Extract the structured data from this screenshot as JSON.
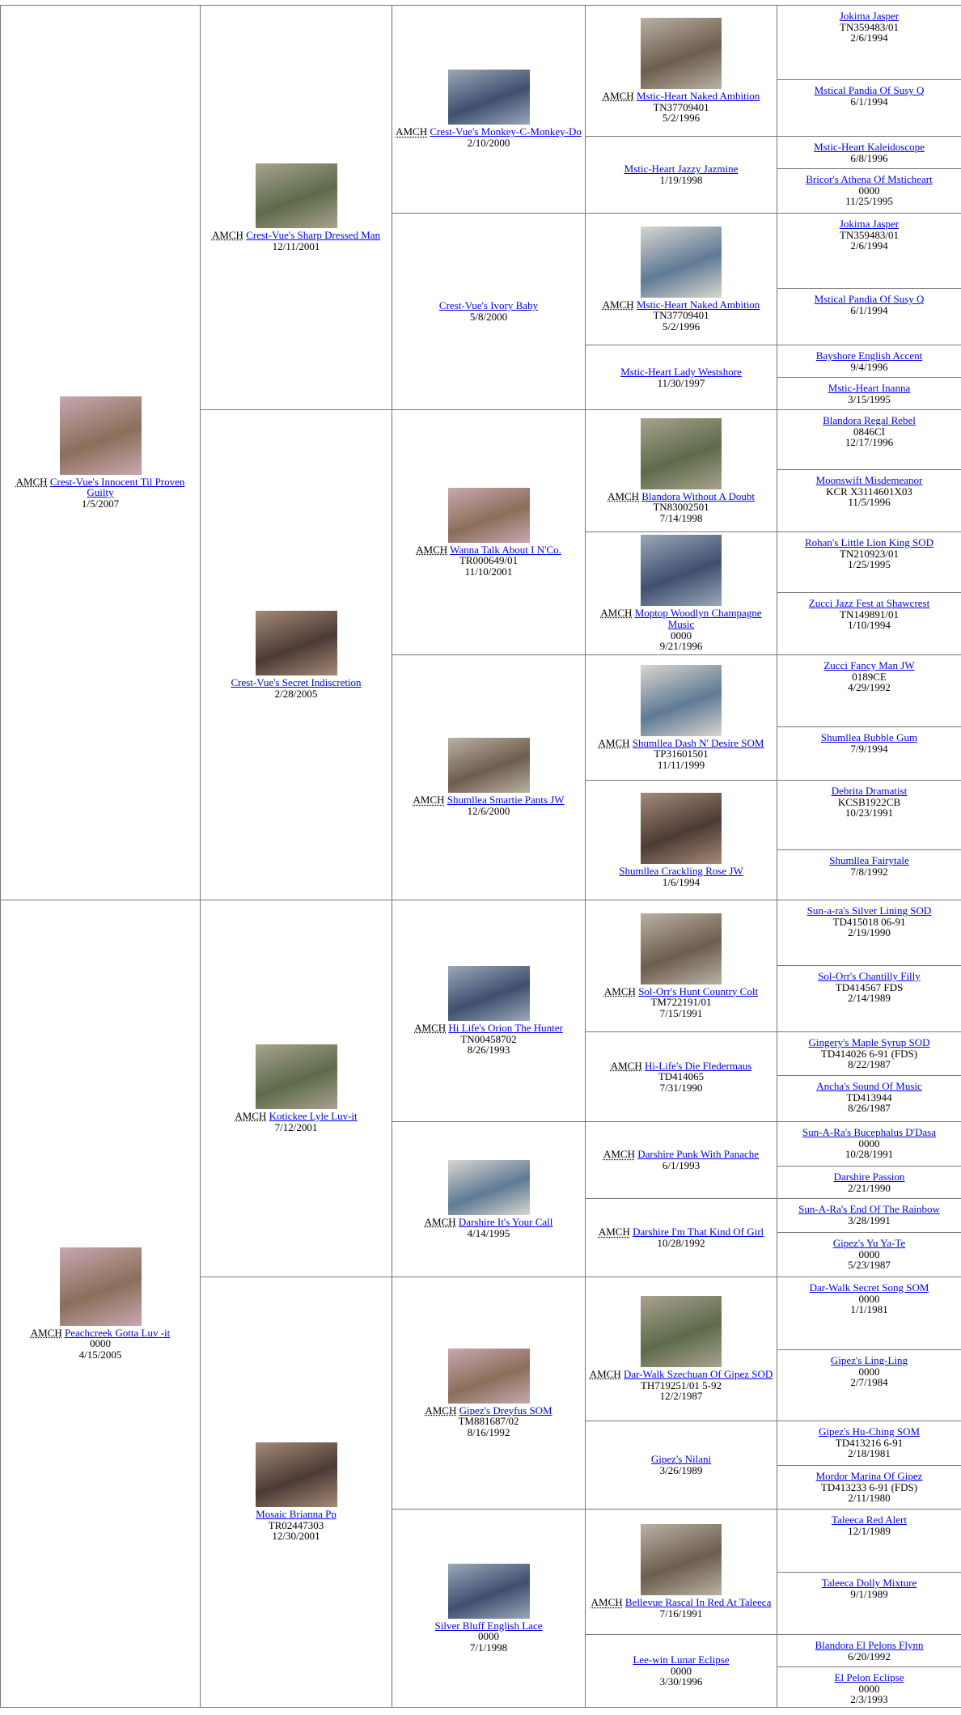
{
  "pedigree": {
    "generations": [
      [
        {
          "title": "AMCH",
          "name": "Crest-Vue's Innocent Til Proven Guilty",
          "details": [
            "1/5/2007"
          ],
          "photo": true
        },
        {
          "title": "AMCH",
          "name": "Peachcreek Gotta Luv -it",
          "details": [
            "0000",
            "4/15/2005"
          ],
          "photo": true
        }
      ],
      [
        {
          "title": "AMCH",
          "name": "Crest-Vue's Sharp Dressed Man",
          "details": [
            "12/11/2001"
          ],
          "photo": true
        },
        {
          "name": "Crest-Vue's Secret Indiscretion",
          "details": [
            "2/28/2005"
          ],
          "photo": true
        },
        {
          "title": "AMCH",
          "name": "Kotickee Lyle Luv-it",
          "details": [
            "7/12/2001"
          ],
          "photo": true
        },
        {
          "name": "Mosaic Brianna Pp",
          "details": [
            "TR02447303",
            "12/30/2001"
          ],
          "photo": true
        }
      ],
      [
        {
          "title": "AMCH",
          "name": "Crest-Vue's Monkey-C-Monkey-Do",
          "details": [
            "2/10/2000"
          ],
          "photo": true
        },
        {
          "name": "Crest-Vue's Ivory Baby",
          "details": [
            "5/8/2000"
          ]
        },
        {
          "title": "AMCH",
          "name": "Wanna Talk About I N'Co.",
          "details": [
            "TR000649/01",
            "11/10/2001"
          ],
          "photo": true
        },
        {
          "title": "AMCH",
          "name": "Shumllea Smartie Pants JW",
          "details": [
            "12/6/2000"
          ],
          "photo": true
        },
        {
          "title": "AMCH",
          "name": "Hi Life's Orion The Hunter",
          "details": [
            "TN00458702",
            "8/26/1993"
          ],
          "photo": true
        },
        {
          "title": "AMCH",
          "name": "Darshire It's Your Call",
          "details": [
            "4/14/1995"
          ],
          "photo": true
        },
        {
          "title": "AMCH",
          "name": "Gipez's Dreyfus SOM",
          "details": [
            "TM881687/02",
            "8/16/1992"
          ],
          "photo": true
        },
        {
          "name": "Silver Bluff English Lace",
          "details": [
            "0000",
            "7/1/1998"
          ],
          "photo": true
        }
      ],
      [
        {
          "title": "AMCH",
          "name": "Mstic-Heart Naked Ambition",
          "details": [
            "TN37709401",
            "5/2/1996"
          ],
          "photo": true
        },
        {
          "name": "Mstic-Heart Jazzy Jazmine",
          "details": [
            "1/19/1998"
          ]
        },
        {
          "title": "AMCH",
          "name": "Mstic-Heart Naked Ambition",
          "details": [
            "TN37709401",
            "5/2/1996"
          ],
          "photo": true
        },
        {
          "name": "Mstic-Heart Lady Westshore",
          "details": [
            "11/30/1997"
          ]
        },
        {
          "title": "AMCH",
          "name": "Blandora Without A Doubt",
          "details": [
            "TN83002501",
            "7/14/1998"
          ],
          "photo": true
        },
        {
          "title": "AMCH",
          "name": "Moptop Woodlyn Champagne Music",
          "details": [
            "0000",
            "9/21/1996"
          ],
          "photo": true
        },
        {
          "title": "AMCH",
          "name": "Shumllea Dash N' Desire SOM",
          "details": [
            "TP31601501",
            "11/11/1999"
          ],
          "photo": true
        },
        {
          "name": "Shumllea Crackling Rose JW",
          "details": [
            "1/6/1994"
          ],
          "photo": true
        },
        {
          "title": "AMCH",
          "name": "Sol-Orr's Hunt Country Colt",
          "details": [
            "TM722191/01",
            "7/15/1991"
          ],
          "photo": true
        },
        {
          "title": "AMCH",
          "name": "Hi-Life's Die Fledermaus",
          "details": [
            "TD414065",
            "7/31/1990"
          ]
        },
        {
          "title": "AMCH",
          "name": "Darshire Punk With Panache",
          "details": [
            "6/1/1993"
          ]
        },
        {
          "title": "AMCH",
          "name": "Darshire I'm That Kind Of Girl",
          "details": [
            "10/28/1992"
          ]
        },
        {
          "title": "AMCH",
          "name": "Dar-Walk Szechuan Of Gipez SOD",
          "details": [
            "TH719251/01 5-92",
            "12/2/1987"
          ],
          "photo": true
        },
        {
          "name": "Gipez's Nilani",
          "details": [
            "3/26/1989"
          ]
        },
        {
          "title": "AMCH",
          "name": "Bellevue Rascal In Red At Taleeca",
          "details": [
            "7/16/1991"
          ],
          "photo": true
        },
        {
          "name": "Lee-win Lunar Eclipse",
          "details": [
            "0000",
            "3/30/1996"
          ]
        }
      ],
      [
        {
          "name": "Jokima Jasper",
          "details": [
            "TN359483/01",
            "2/6/1994"
          ]
        },
        {
          "name": "Mstical Pandia Of Susy Q",
          "details": [
            "6/1/1994"
          ]
        },
        {
          "name": "Mstic-Heart Kaleidoscope",
          "details": [
            "6/8/1996"
          ]
        },
        {
          "name": "Bricor's Athena Of Msticheart",
          "details": [
            "0000",
            "11/25/1995"
          ]
        },
        {
          "name": "Jokima Jasper",
          "details": [
            "TN359483/01",
            "2/6/1994"
          ]
        },
        {
          "name": "Mstical Pandia Of Susy Q",
          "details": [
            "6/1/1994"
          ]
        },
        {
          "name": "Bayshore English Accent",
          "details": [
            "9/4/1996"
          ]
        },
        {
          "name": "Mstic-Heart Inanna",
          "details": [
            "3/15/1995"
          ]
        },
        {
          "name": "Blandora Regal Rebel",
          "details": [
            "0846CI",
            "12/17/1996"
          ]
        },
        {
          "name": "Moonswift Misdemeanor",
          "details": [
            "KCR X3114601X03",
            "11/5/1996"
          ]
        },
        {
          "name": "Rohan's Little Lion King SOD",
          "details": [
            "TN210923/01",
            "1/25/1995"
          ]
        },
        {
          "name": "Zucci Jazz Fest at Shawcrest",
          "details": [
            "TN149891/01",
            "1/10/1994"
          ]
        },
        {
          "name": "Zucci Fancy Man JW",
          "details": [
            "0189CE",
            "4/29/1992"
          ]
        },
        {
          "name": "Shumllea Bubble Gum",
          "details": [
            "7/9/1994"
          ]
        },
        {
          "name": "Debrita Dramatist",
          "details": [
            "KCSB1922CB",
            "10/23/1991"
          ]
        },
        {
          "name": "Shumllea Fairytale",
          "details": [
            "7/8/1992"
          ]
        },
        {
          "name": "Sun-a-ra's Silver Lining SOD",
          "details": [
            "TD415018 06-91",
            "2/19/1990"
          ]
        },
        {
          "name": "Sol-Orr's Chantilly Filly",
          "details": [
            "TD414567 FDS",
            "2/14/1989"
          ]
        },
        {
          "name": "Gingery's Maple Syrup SOD",
          "details": [
            "TD414026 6-91 (FDS)",
            "8/22/1987"
          ]
        },
        {
          "name": "Ancha's Sound Of Music",
          "details": [
            "TD413944",
            "8/26/1987"
          ]
        },
        {
          "name": "Sun-A-Ra's Bucephalus D'Dasa",
          "details": [
            "0000",
            "10/28/1991"
          ]
        },
        {
          "name": "Darshire Passion",
          "details": [
            "2/21/1990"
          ]
        },
        {
          "name": "Sun-A-Ra's End Of The Rainbow",
          "details": [
            "3/28/1991"
          ]
        },
        {
          "name": "Gipez's Yu Ya-Te",
          "details": [
            "0000",
            "5/23/1987"
          ]
        },
        {
          "name": "Dar-Walk Secret Song SOM",
          "details": [
            "0000",
            "1/1/1981"
          ]
        },
        {
          "name": "Gipez's Ling-Ling",
          "details": [
            "0000",
            "2/7/1984"
          ]
        },
        {
          "name": "Gipez's Hu-Ching SOM",
          "details": [
            "TD413216 6-91",
            "2/18/1981"
          ]
        },
        {
          "name": "Mordor Marina Of Gipez",
          "details": [
            "TD413233 6-91 (FDS)",
            "2/11/1980"
          ]
        },
        {
          "name": "Taleeca Red Alert",
          "details": [
            "12/1/1989"
          ]
        },
        {
          "name": "Taleeca Dolly Mixture",
          "details": [
            "9/1/1989"
          ]
        },
        {
          "name": "Blandora El Pelons Flynn",
          "details": [
            "6/20/1992"
          ]
        },
        {
          "name": "El Pelon Eclipse",
          "details": [
            "0000",
            "2/3/1993"
          ]
        }
      ]
    ]
  }
}
